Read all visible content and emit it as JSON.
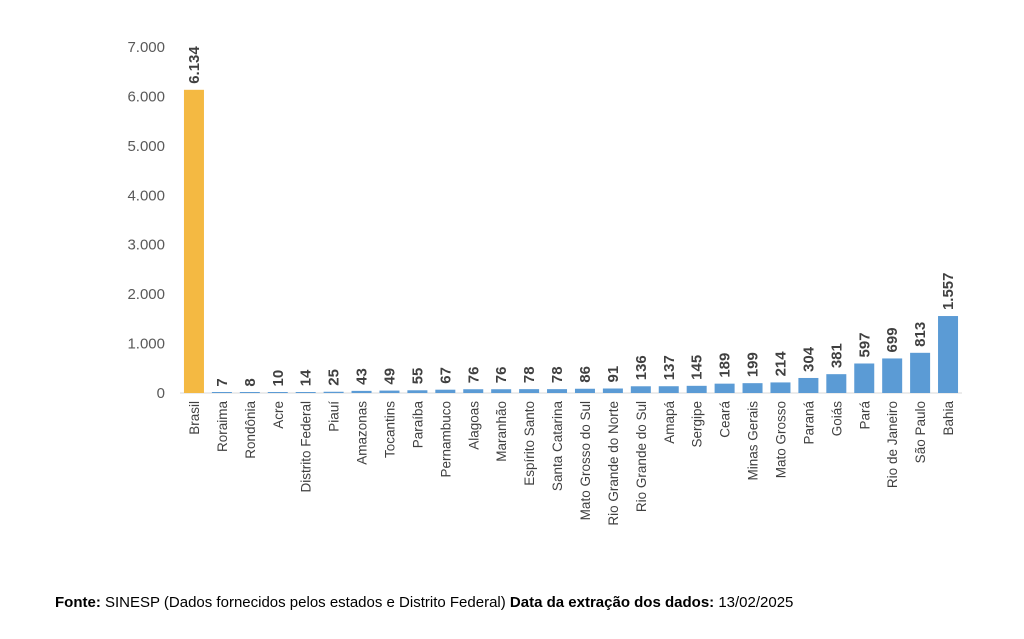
{
  "chart_data": {
    "type": "bar",
    "categories": [
      "Brasil",
      "Roraima",
      "Rondônia",
      "Acre",
      "Distrito Federal",
      "Piauí",
      "Amazonas",
      "Tocantins",
      "Paraíba",
      "Pernambuco",
      "Alagoas",
      "Maranhão",
      "Espírito Santo",
      "Santa Catarina",
      "Mato Grosso do Sul",
      "Rio Grande do Norte",
      "Rio Grande do Sul",
      "Amapá",
      "Sergipe",
      "Ceará",
      "Minas Gerais",
      "Mato Grosso",
      "Paraná",
      "Goiás",
      "Pará",
      "Rio de Janeiro",
      "São Paulo",
      "Bahia"
    ],
    "values": [
      6134,
      7,
      8,
      10,
      14,
      25,
      43,
      49,
      55,
      67,
      76,
      76,
      78,
      78,
      86,
      91,
      136,
      137,
      145,
      189,
      199,
      214,
      304,
      381,
      597,
      699,
      813,
      1557
    ],
    "data_labels": [
      "6.134",
      "7",
      "8",
      "10",
      "14",
      "25",
      "43",
      "49",
      "55",
      "67",
      "76",
      "76",
      "78",
      "78",
      "86",
      "91",
      "136",
      "137",
      "145",
      "189",
      "199",
      "214",
      "304",
      "381",
      "597",
      "699",
      "813",
      "1.557"
    ],
    "ylim": [
      0,
      7000
    ],
    "yticks": [
      0,
      1000,
      2000,
      3000,
      4000,
      5000,
      6000,
      7000
    ],
    "ytick_labels": [
      "0",
      "1.000",
      "2.000",
      "3.000",
      "4.000",
      "5.000",
      "6.000",
      "7.000"
    ],
    "colors": {
      "highlight": "#F4B942",
      "default": "#5B9BD5"
    },
    "highlight_category": "Brasil",
    "grid": false
  },
  "footer": {
    "source_label": "Fonte:",
    "source_text": " SINESP (Dados fornecidos pelos estados e Distrito Federal)  ",
    "date_label": "Data da extração dos dados:",
    "date_text": " 13/02/2025"
  }
}
